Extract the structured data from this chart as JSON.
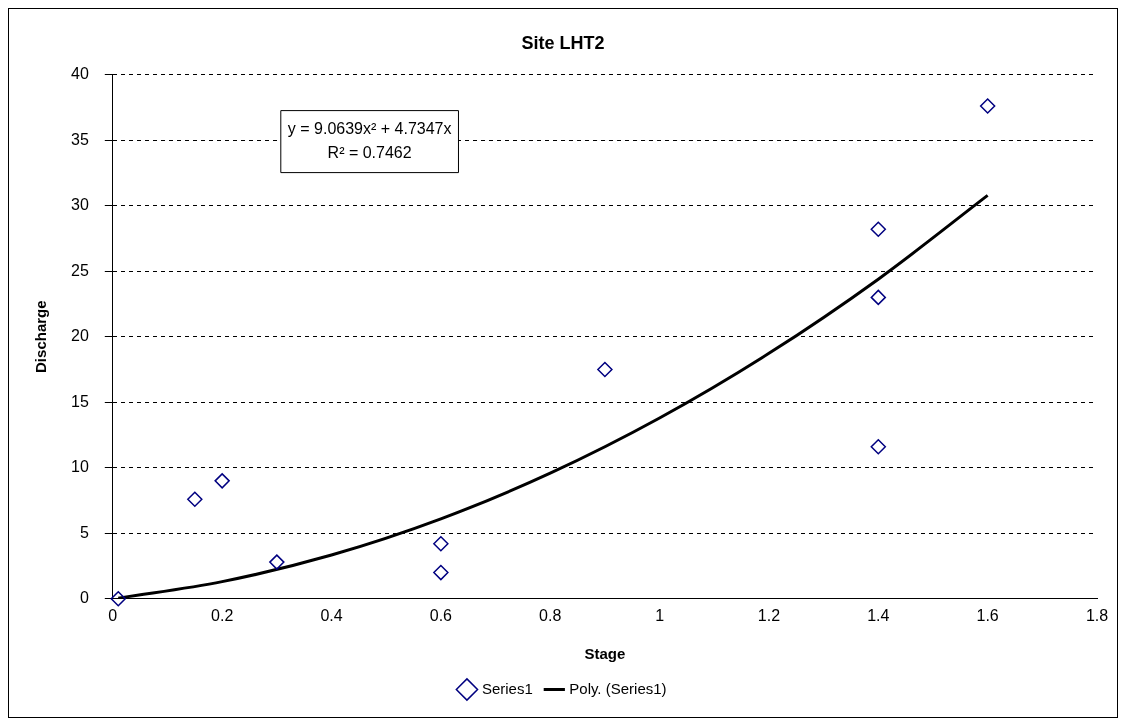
{
  "chart_data": {
    "type": "scatter",
    "title": "Site LHT2",
    "xlabel": "Stage",
    "ylabel": "Discharge",
    "xlim": [
      0,
      1.8
    ],
    "xticks": [
      0,
      0.2,
      0.4,
      0.6,
      0.8,
      1,
      1.2,
      1.4,
      1.6,
      1.8
    ],
    "ylim": [
      0,
      40
    ],
    "yticks": [
      0,
      5,
      10,
      15,
      20,
      25,
      30,
      35,
      40
    ],
    "grid": "y",
    "legend": "bottom",
    "annotations": [
      "y = 9.0639x² + 4.7347x",
      "R² = 0.7462"
    ],
    "series": [
      {
        "name": "Series1",
        "type": "scatter",
        "marker": "diamond",
        "color": "#000080",
        "x": [
          0.01,
          0.15,
          0.2,
          0.3,
          0.6,
          0.6,
          0.9,
          1.4,
          1.4,
          1.4,
          1.6
        ],
        "values": [
          0,
          7.6,
          9.0,
          2.8,
          4.2,
          2.0,
          17.5,
          28.2,
          23.0,
          11.6,
          37.6
        ]
      },
      {
        "name": "Poly. (Series1)",
        "type": "line",
        "marker": "none",
        "line_style": "solid",
        "color": "#000000",
        "x": [
          0.01,
          0.2,
          0.4,
          0.6,
          0.8,
          1.0,
          1.2,
          1.4,
          1.6
        ],
        "values": [
          0.05,
          1.31,
          3.34,
          6.1,
          9.59,
          13.8,
          18.73,
          24.39,
          30.78
        ]
      }
    ]
  }
}
